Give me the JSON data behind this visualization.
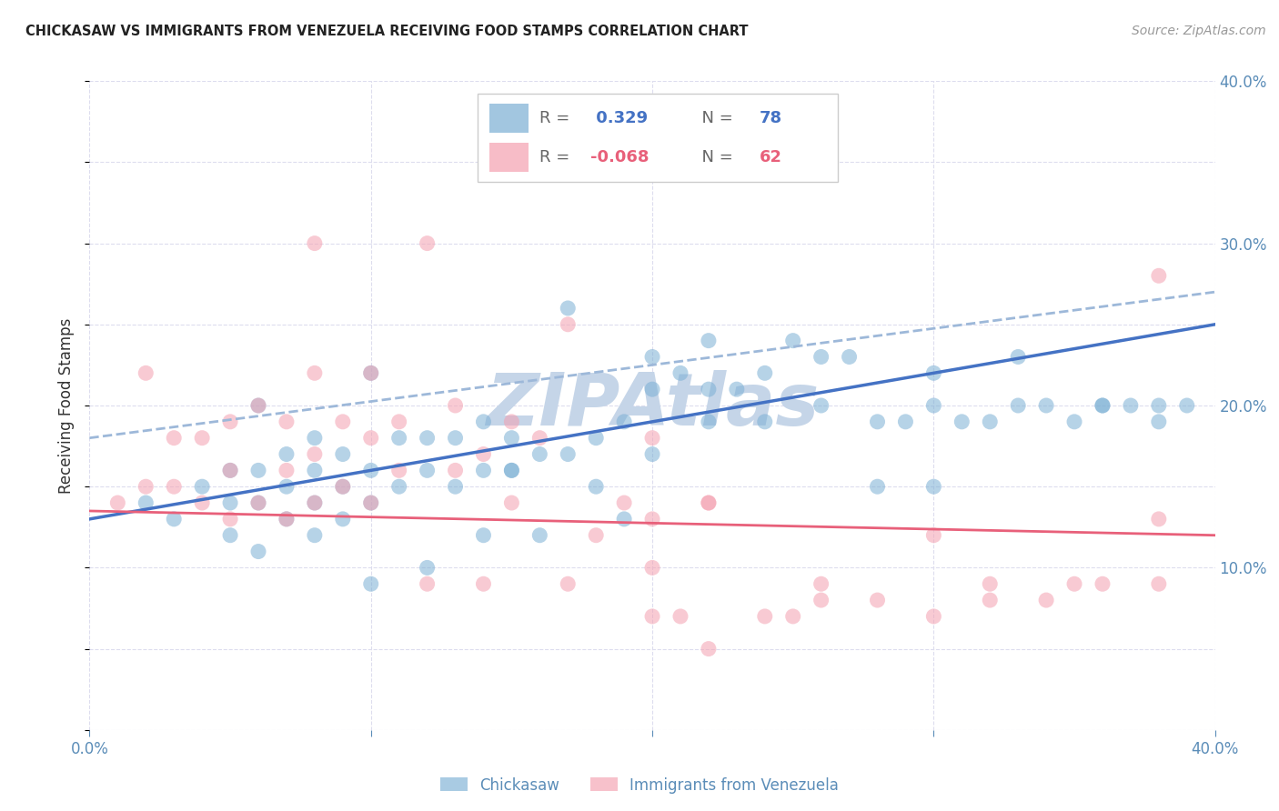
{
  "title": "CHICKASAW VS IMMIGRANTS FROM VENEZUELA RECEIVING FOOD STAMPS CORRELATION CHART",
  "source": "Source: ZipAtlas.com",
  "ylabel": "Receiving Food Stamps",
  "blue_label": "Chickasaw",
  "pink_label": "Immigrants from Venezuela",
  "xmin": 0.0,
  "xmax": 0.4,
  "ymin": 0.0,
  "ymax": 0.4,
  "yticks": [
    0.1,
    0.2,
    0.3,
    0.4
  ],
  "ytick_labels": [
    "10.0%",
    "20.0%",
    "30.0%",
    "40.0%"
  ],
  "xticks": [
    0.0,
    0.1,
    0.2,
    0.3,
    0.4
  ],
  "xtick_labels": [
    "0.0%",
    "",
    "",
    "",
    "40.0%"
  ],
  "legend_r1_label": "R = ",
  "legend_r1_val": "0.329",
  "legend_r1_n": "N = 78",
  "legend_r2_label": "R = ",
  "legend_r2_val": "-0.068",
  "legend_r2_n": "N = 62",
  "blue_color": "#7BAFD4",
  "pink_color": "#F4A0B0",
  "blue_line_color": "#4472C4",
  "pink_line_color": "#E8607A",
  "dashed_line_color": "#9DB8D9",
  "watermark": "ZIPAtlas",
  "watermark_color": "#C5D5E8",
  "background_color": "#FFFFFF",
  "grid_color": "#DDDDEE",
  "tick_color": "#5B8DB8",
  "title_color": "#222222",
  "source_color": "#999999",
  "blue_scatter_x": [
    0.02,
    0.03,
    0.04,
    0.05,
    0.05,
    0.05,
    0.06,
    0.06,
    0.06,
    0.07,
    0.07,
    0.07,
    0.08,
    0.08,
    0.08,
    0.09,
    0.09,
    0.09,
    0.1,
    0.1,
    0.1,
    0.11,
    0.11,
    0.12,
    0.12,
    0.13,
    0.13,
    0.14,
    0.14,
    0.15,
    0.15,
    0.16,
    0.17,
    0.17,
    0.18,
    0.19,
    0.2,
    0.2,
    0.21,
    0.22,
    0.23,
    0.24,
    0.25,
    0.26,
    0.28,
    0.29,
    0.3,
    0.31,
    0.33,
    0.35,
    0.37,
    0.38,
    0.06,
    0.08,
    0.1,
    0.12,
    0.14,
    0.16,
    0.18,
    0.2,
    0.22,
    0.24,
    0.26,
    0.28,
    0.3,
    0.32,
    0.34,
    0.36,
    0.38,
    0.15,
    0.19,
    0.22,
    0.27,
    0.3,
    0.33,
    0.36,
    0.39,
    0.25
  ],
  "blue_scatter_y": [
    0.14,
    0.13,
    0.15,
    0.14,
    0.16,
    0.12,
    0.14,
    0.16,
    0.2,
    0.13,
    0.15,
    0.17,
    0.14,
    0.16,
    0.18,
    0.15,
    0.17,
    0.13,
    0.14,
    0.16,
    0.22,
    0.15,
    0.18,
    0.16,
    0.18,
    0.15,
    0.18,
    0.16,
    0.19,
    0.16,
    0.18,
    0.17,
    0.17,
    0.26,
    0.18,
    0.19,
    0.21,
    0.23,
    0.22,
    0.24,
    0.21,
    0.22,
    0.24,
    0.23,
    0.19,
    0.19,
    0.2,
    0.19,
    0.2,
    0.19,
    0.2,
    0.2,
    0.11,
    0.12,
    0.09,
    0.1,
    0.12,
    0.12,
    0.15,
    0.17,
    0.19,
    0.19,
    0.2,
    0.15,
    0.15,
    0.19,
    0.2,
    0.2,
    0.19,
    0.16,
    0.13,
    0.21,
    0.23,
    0.22,
    0.23,
    0.2,
    0.2,
    0.36
  ],
  "pink_scatter_x": [
    0.01,
    0.02,
    0.02,
    0.03,
    0.03,
    0.04,
    0.04,
    0.05,
    0.05,
    0.05,
    0.06,
    0.06,
    0.07,
    0.07,
    0.07,
    0.08,
    0.08,
    0.08,
    0.09,
    0.09,
    0.1,
    0.1,
    0.1,
    0.11,
    0.11,
    0.12,
    0.13,
    0.13,
    0.14,
    0.15,
    0.15,
    0.16,
    0.17,
    0.18,
    0.19,
    0.2,
    0.21,
    0.22,
    0.2,
    0.22,
    0.24,
    0.26,
    0.28,
    0.3,
    0.32,
    0.34,
    0.36,
    0.38,
    0.38,
    0.2,
    0.25,
    0.3,
    0.35,
    0.12,
    0.17,
    0.22,
    0.08,
    0.14,
    0.2,
    0.26,
    0.32,
    0.38
  ],
  "pink_scatter_y": [
    0.14,
    0.15,
    0.22,
    0.15,
    0.18,
    0.14,
    0.18,
    0.13,
    0.16,
    0.19,
    0.14,
    0.2,
    0.13,
    0.16,
    0.19,
    0.14,
    0.17,
    0.22,
    0.15,
    0.19,
    0.14,
    0.18,
    0.22,
    0.16,
    0.19,
    0.3,
    0.16,
    0.2,
    0.17,
    0.14,
    0.19,
    0.18,
    0.25,
    0.12,
    0.14,
    0.18,
    0.07,
    0.05,
    0.13,
    0.14,
    0.07,
    0.08,
    0.08,
    0.12,
    0.08,
    0.08,
    0.09,
    0.13,
    0.28,
    0.07,
    0.07,
    0.07,
    0.09,
    0.09,
    0.09,
    0.14,
    0.3,
    0.09,
    0.1,
    0.09,
    0.09,
    0.09
  ],
  "blue_trend_start": 0.13,
  "blue_trend_end": 0.25,
  "pink_trend_start": 0.135,
  "pink_trend_end": 0.12,
  "dashed_trend_start": 0.18,
  "dashed_trend_end": 0.27
}
